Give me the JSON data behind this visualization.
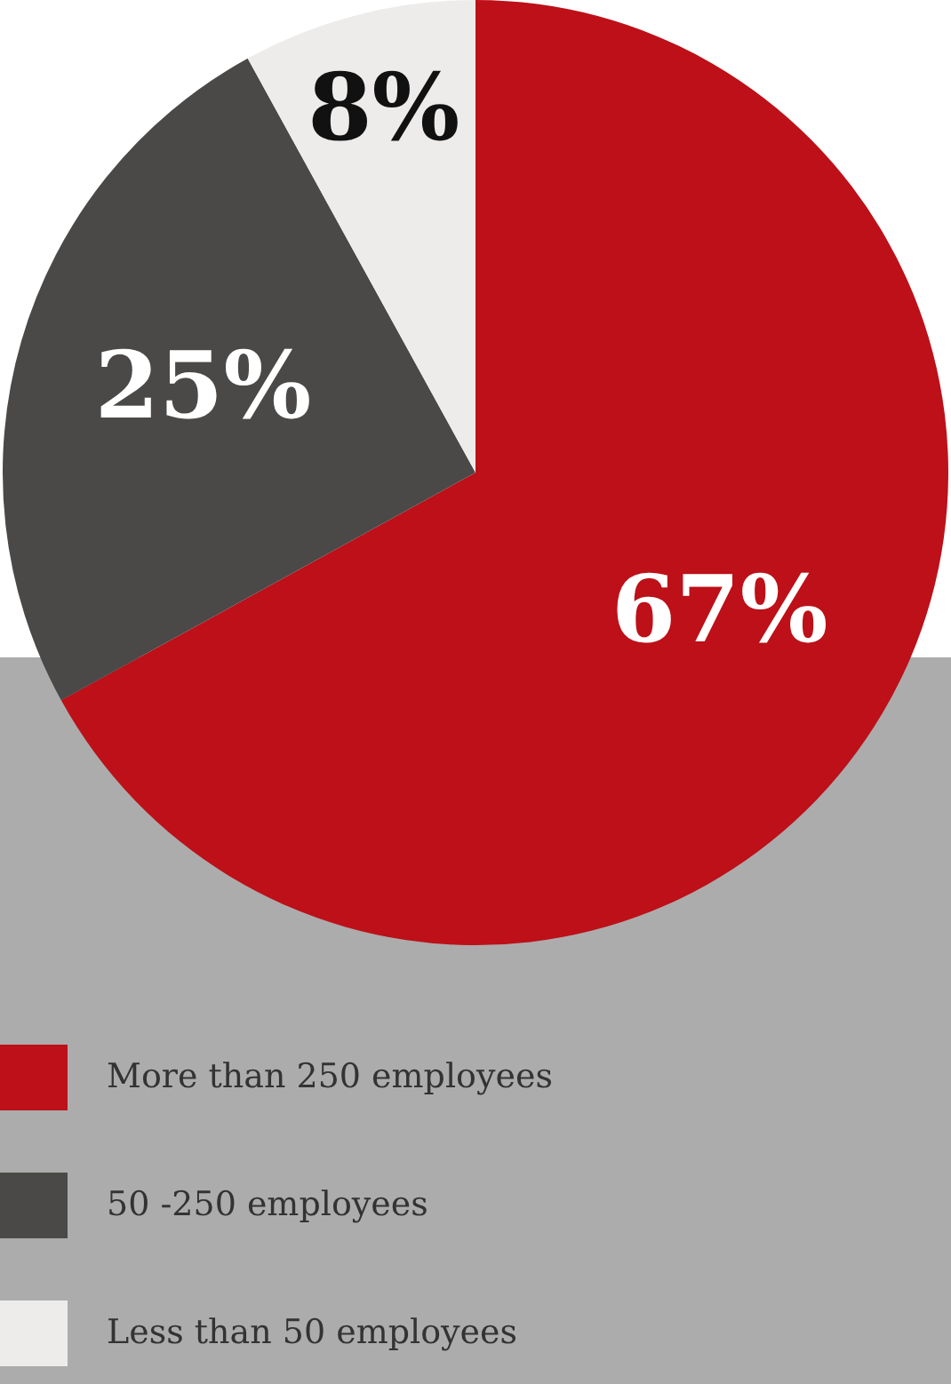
{
  "chart_data": {
    "type": "pie",
    "categories": [
      "More than 250 employees",
      "50 -250 employees",
      "Less than 50 employees"
    ],
    "values": [
      67,
      25,
      8
    ],
    "colors": [
      "#bd1018",
      "#4a4948",
      "#eeeceb"
    ],
    "value_labels": [
      "67%",
      "25%",
      "8%"
    ],
    "legend": "bottom"
  }
}
